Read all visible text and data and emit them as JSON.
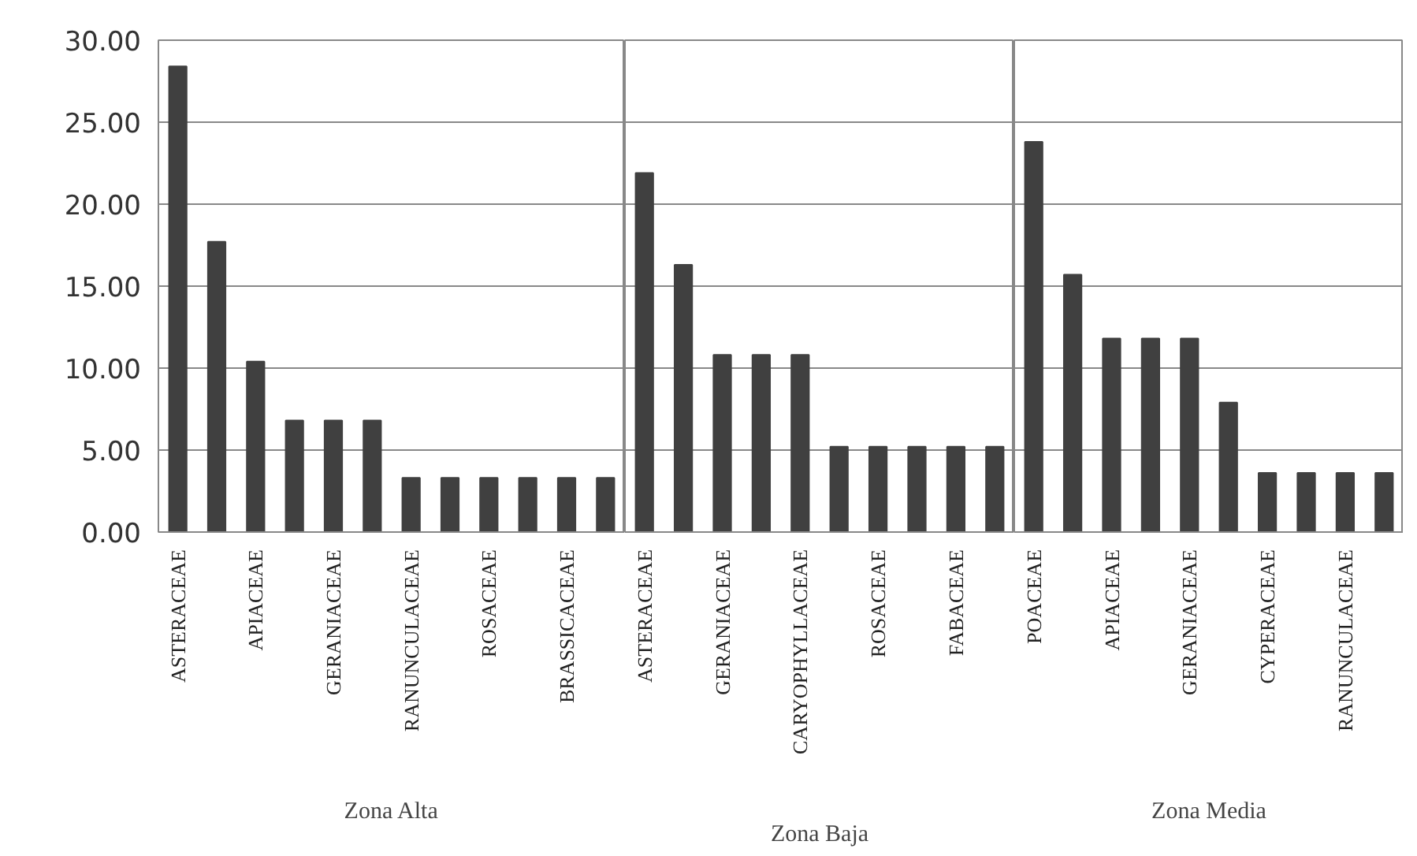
{
  "chart_data": [
    {
      "type": "bar",
      "xlabel": "Zona Alta",
      "categories": [
        "ASTERACEAE",
        null,
        "APIACEAE",
        null,
        "GERANIACEAE",
        null,
        "RANUNCULACEAE",
        null,
        "ROSACEAE",
        null,
        "BRASSICACEAE",
        null
      ],
      "values": [
        28.4,
        17.7,
        10.4,
        6.8,
        6.8,
        6.8,
        3.3,
        3.3,
        3.3,
        3.3,
        3.3,
        3.3
      ],
      "color": "#404040",
      "ylim": [
        0,
        30
      ],
      "yticks": [
        {
          "value": 0,
          "label": "0.00"
        },
        {
          "value": 5,
          "label": "5.00"
        },
        {
          "value": 10,
          "label": "10.00"
        },
        {
          "value": 15,
          "label": "15.00"
        },
        {
          "value": 20,
          "label": "20.00"
        },
        {
          "value": 25,
          "label": "25.00"
        },
        {
          "value": 30,
          "label": "30.00"
        }
      ],
      "grid": "y"
    },
    {
      "type": "bar",
      "xlabel": "Zona Baja",
      "categories": [
        "ASTERACEAE",
        null,
        "GERANIACEAE",
        null,
        "CARYOPHYLLACEAE",
        null,
        "ROSACEAE",
        null,
        "FABACEAE",
        null
      ],
      "values": [
        21.9,
        16.3,
        10.8,
        10.8,
        10.8,
        5.2,
        5.2,
        5.2,
        5.2,
        5.2
      ],
      "color": "#404040",
      "ylim": [
        0,
        30
      ],
      "yticks": [
        0,
        5,
        10,
        15,
        20,
        25,
        30
      ],
      "grid": "y",
      "tick_labels": "x"
    },
    {
      "type": "bar",
      "xlabel": "Zona Media",
      "categories": [
        "POACEAE",
        null,
        "APIACEAE",
        null,
        "GERANIACEAE",
        null,
        "CYPERACEAE",
        null,
        "RANUNCULACEAE",
        null
      ],
      "values": [
        23.8,
        15.7,
        11.8,
        11.8,
        11.8,
        7.9,
        3.6,
        3.6,
        3.6,
        3.6
      ],
      "color": "#404040",
      "ylim": [
        0,
        30
      ],
      "yticks": [
        0,
        5,
        10,
        15,
        20,
        25,
        30
      ],
      "grid": "y",
      "tick_labels": "x"
    }
  ]
}
